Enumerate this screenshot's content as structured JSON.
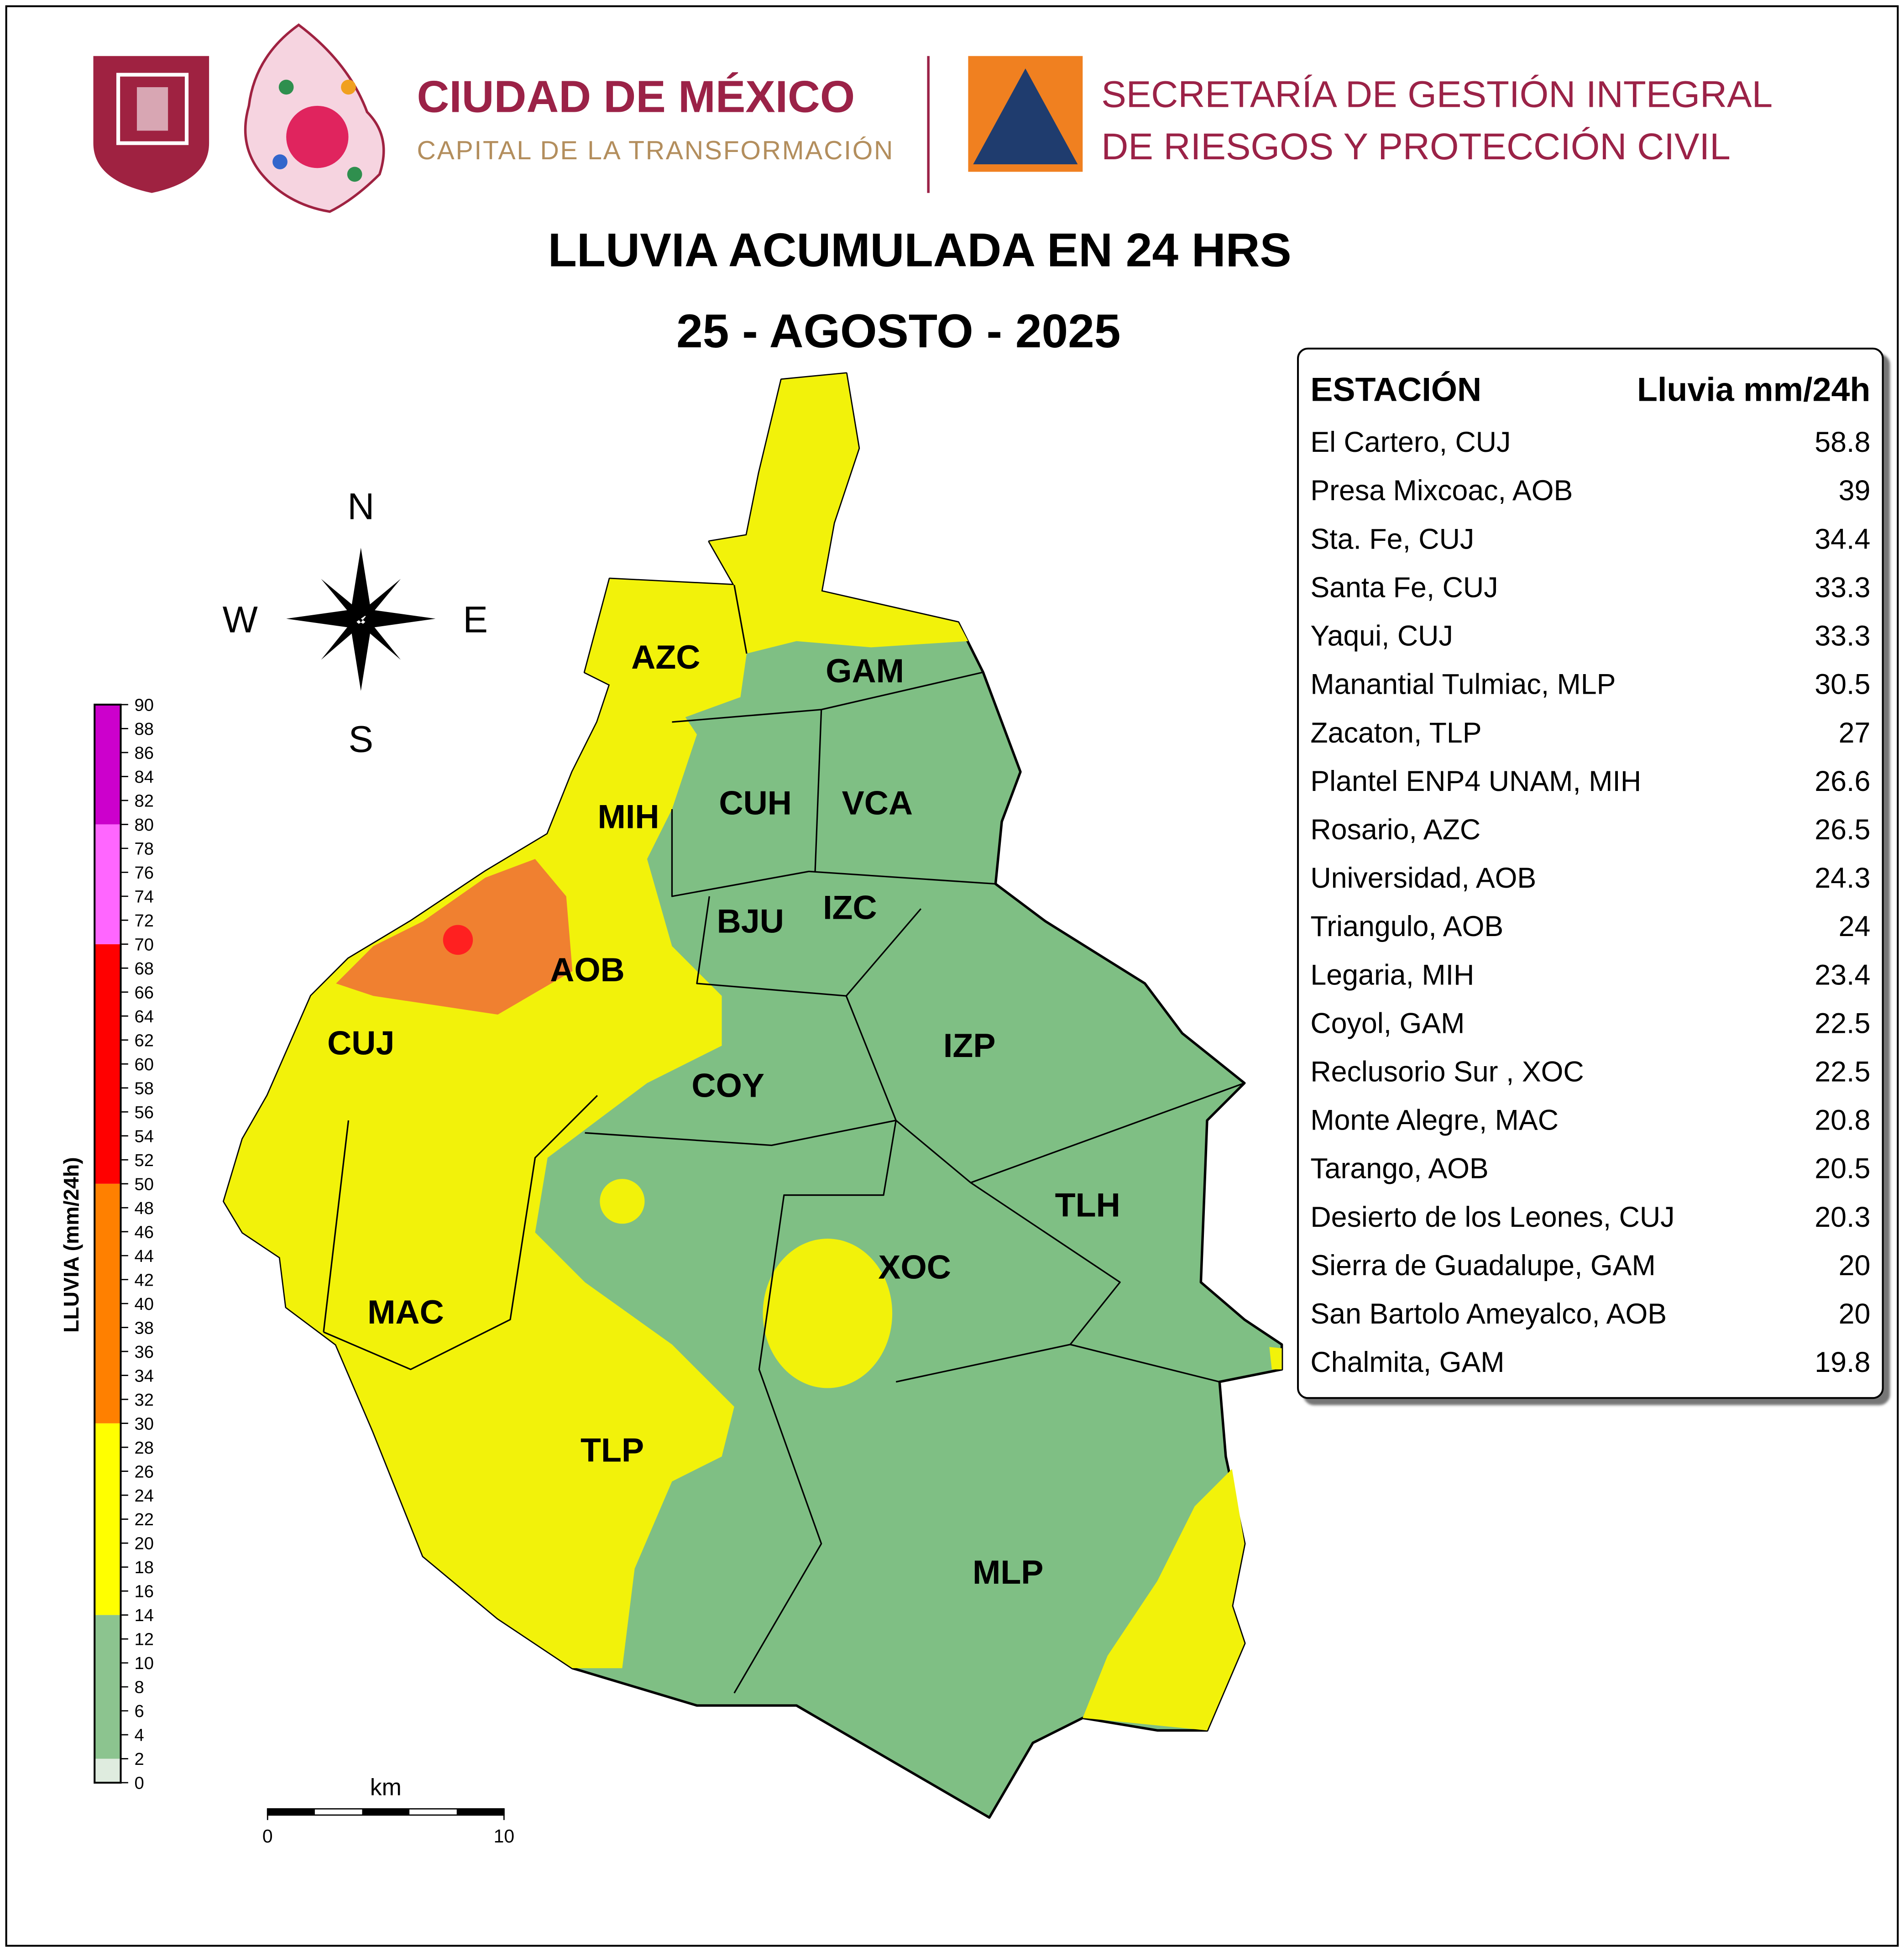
{
  "header": {
    "city": "CIUDAD DE MÉXICO",
    "city_motto": "CAPITAL DE LA TRANSFORMACIÓN",
    "agency_line1": "SECRETARÍA DE GESTIÓN INTEGRAL",
    "agency_line2": "DE RIESGOS Y PROTECCIÓN CIVIL"
  },
  "title": "LLUVIA ACUMULADA EN 24 HRS",
  "subtitle": "25 - AGOSTO - 2025",
  "compass": {
    "n": "N",
    "s": "S",
    "e": "E",
    "w": "W"
  },
  "colorbar": {
    "label": "LLUVIA (mm/24h)",
    "range": [
      0,
      90
    ],
    "ticks": [
      0,
      2,
      4,
      6,
      8,
      10,
      12,
      14,
      16,
      18,
      20,
      22,
      24,
      26,
      28,
      30,
      32,
      34,
      36,
      38,
      40,
      42,
      44,
      46,
      48,
      50,
      52,
      54,
      56,
      58,
      60,
      62,
      64,
      66,
      68,
      70,
      72,
      74,
      76,
      78,
      80,
      82,
      84,
      86,
      88,
      90
    ],
    "bins": [
      {
        "from": 0,
        "to": 2,
        "color": "#dfecdf"
      },
      {
        "from": 2,
        "to": 14,
        "color": "#8cc48f"
      },
      {
        "from": 14,
        "to": 30,
        "color": "#ffff00"
      },
      {
        "from": 30,
        "to": 50,
        "color": "#ff8000"
      },
      {
        "from": 50,
        "to": 70,
        "color": "#ff0000"
      },
      {
        "from": 70,
        "to": 80,
        "color": "#ff66ff"
      },
      {
        "from": 80,
        "to": 90,
        "color": "#cc00cc"
      }
    ]
  },
  "districts": [
    "AZC",
    "GAM",
    "MIH",
    "CUH",
    "VCA",
    "BJU",
    "IZC",
    "AOB",
    "CUJ",
    "COY",
    "IZP",
    "TLH",
    "XOC",
    "MAC",
    "TLP",
    "MLP"
  ],
  "scale_bar": {
    "unit": "km",
    "ticks": [
      0,
      10
    ]
  },
  "stations_table": {
    "columns": [
      "ESTACIÓN",
      "Lluvia mm/24h"
    ],
    "rows": [
      {
        "station": "El Cartero, CUJ",
        "value": 58.8
      },
      {
        "station": "Presa Mixcoac, AOB",
        "value": 39
      },
      {
        "station": "Sta. Fe, CUJ",
        "value": 34.4
      },
      {
        "station": "Santa Fe, CUJ",
        "value": 33.3
      },
      {
        "station": "Yaqui, CUJ",
        "value": 33.3
      },
      {
        "station": "Manantial Tulmiac, MLP",
        "value": 30.5
      },
      {
        "station": "Zacaton, TLP",
        "value": 27
      },
      {
        "station": "Plantel ENP4 UNAM, MIH",
        "value": 26.6
      },
      {
        "station": "Rosario, AZC",
        "value": 26.5
      },
      {
        "station": "Universidad, AOB",
        "value": 24.3
      },
      {
        "station": "Triangulo, AOB",
        "value": 24
      },
      {
        "station": "Legaria, MIH",
        "value": 23.4
      },
      {
        "station": "Coyol, GAM",
        "value": 22.5
      },
      {
        "station": "Reclusorio Sur , XOC",
        "value": 22.5
      },
      {
        "station": "Monte Alegre, MAC",
        "value": 20.8
      },
      {
        "station": "Tarango, AOB",
        "value": 20.5
      },
      {
        "station": "Desierto de los Leones, CUJ",
        "value": 20.3
      },
      {
        "station": "Sierra de Guadalupe, GAM",
        "value": 20
      },
      {
        "station": "San Bartolo Ameyalco, AOB",
        "value": 20
      },
      {
        "station": "Chalmita, GAM",
        "value": 19.8
      }
    ]
  }
}
